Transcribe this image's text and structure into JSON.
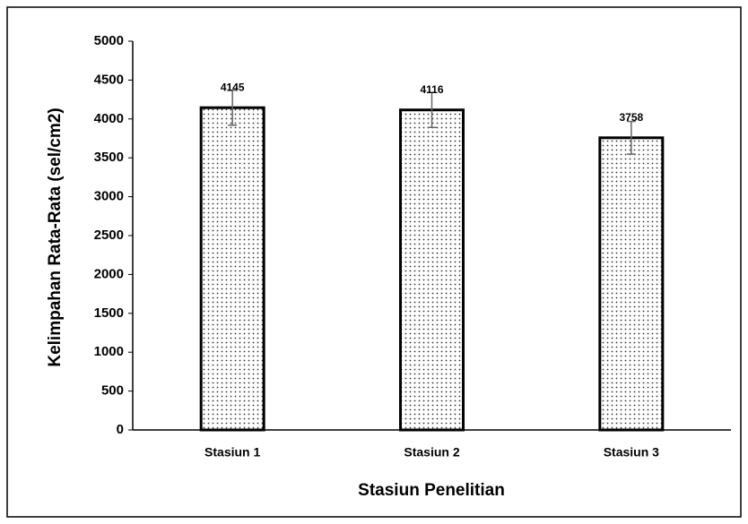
{
  "chart_data": {
    "type": "bar",
    "categories": [
      "Stasiun 1",
      "Stasiun 2",
      "Stasiun 3"
    ],
    "values": [
      4145,
      4116,
      3758
    ],
    "errors": [
      225,
      225,
      210
    ],
    "x_label": "Stasiun Penelitian",
    "y_label": "Kelimpahan Rata-Rata  (sel/cm2)",
    "ylim": [
      0,
      5000
    ],
    "yticks": [
      0,
      500,
      1000,
      1500,
      2000,
      2500,
      3000,
      3500,
      4000,
      4500,
      5000
    ],
    "color": "#000000",
    "grid": false
  }
}
